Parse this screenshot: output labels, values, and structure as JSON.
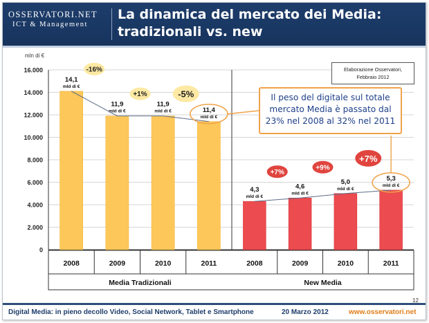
{
  "header": {
    "logo_main": "OSSERVATORI.NET",
    "logo_sub": "ICT & Management",
    "title_line1": "La dinamica del mercato dei Media:",
    "title_line2": "tradizionali vs. new"
  },
  "source_note": {
    "line1": "Elaborazione Osservatori,",
    "line2": "Febbraio 2012"
  },
  "callout": {
    "line1": "Il peso del digitale sul totale",
    "line2": "mercato Media è passato dal",
    "line3": "23% nel 2008 al 32% nel 2011"
  },
  "footer": {
    "left": "Digital Media: in pieno decollo Video, Social Network, Tablet e Smartphone",
    "date": "20 Marzo 2012",
    "url": "www.osservatori.net",
    "page_number": "12"
  },
  "colors": {
    "traditional": "#fdc75a",
    "new_media": "#ec4b4f",
    "bubble": "#fde9a3",
    "bubble_red": "#e0443e",
    "accent_orange": "#f0a24a",
    "dark_blue": "#1e3d6b"
  },
  "chart_data": {
    "type": "bar",
    "ylabel": "mln di €",
    "ylim": [
      0,
      16000
    ],
    "yticks": [
      "0",
      "2.000",
      "4.000",
      "6.000",
      "8.000",
      "10.000",
      "12.000",
      "14.000",
      "16.000"
    ],
    "grid": true,
    "groups": [
      {
        "name": "Media Tradizionali",
        "categories": [
          "2008",
          "2009",
          "2010",
          "2011"
        ],
        "values": [
          14100,
          11900,
          11900,
          11400
        ],
        "labels": [
          "14,1",
          "11,9",
          "11,9",
          "11,4"
        ],
        "unit": "mld di €",
        "growth": [
          "-16%",
          "+1%",
          "-5%"
        ]
      },
      {
        "name": "New Media",
        "categories": [
          "2008",
          "2009",
          "2010",
          "2011"
        ],
        "values": [
          4300,
          4600,
          5000,
          5300
        ],
        "labels": [
          "4,3",
          "4,6",
          "5,0",
          "5,3"
        ],
        "unit": "mld di €",
        "growth": [
          "+7%",
          "+9%",
          "+7%"
        ]
      }
    ]
  }
}
